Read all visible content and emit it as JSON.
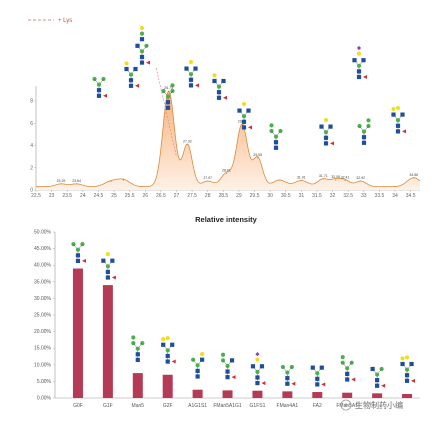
{
  "legend": {
    "label": "+ Lys",
    "line_color": "#d98a8a"
  },
  "watermark": {
    "text": "生物制药小编"
  },
  "colors": {
    "curve": "#d88a3c",
    "fill_top": "#f6b27a",
    "fill_bottom": "#fff1e6",
    "bar": "#b53a55",
    "gal": "#f2de1f",
    "man": "#4caf50",
    "glcnac": "#1f4e9a",
    "fuc": "#d32f2f",
    "sia": "#8e44ad"
  },
  "chart_data": [
    {
      "type": "area",
      "title": "",
      "xlabel": "",
      "ylabel": "",
      "x_ticks": [
        "22.5",
        "23",
        "23.5",
        "24",
        "24.5",
        "25",
        "25.5",
        "26",
        "26.5",
        "27",
        "27.5",
        "28",
        "28.5",
        "29",
        "29.5",
        "30",
        "30.5",
        "31",
        "31.5",
        "32",
        "32.5",
        "33",
        "33.5",
        "34",
        "34.5"
      ],
      "y_ticks": [
        "0",
        "2",
        "4",
        "6",
        "8"
      ],
      "xlim": [
        22.5,
        34.8
      ],
      "ylim": [
        0,
        9
      ],
      "grid": false,
      "baseline": 0.3,
      "peaks": [
        {
          "x": 23.3,
          "h": 0.25,
          "w": 0.25,
          "label": "23.29"
        },
        {
          "x": 23.8,
          "h": 0.25,
          "w": 0.25,
          "label": "23.84"
        },
        {
          "x": 24.9,
          "h": 0.45,
          "w": 0.3
        },
        {
          "x": 25.3,
          "h": 0.6,
          "w": 0.3
        },
        {
          "x": 26.75,
          "h": 8.6,
          "w": 0.26,
          "label": "26.73"
        },
        {
          "x": 27.35,
          "h": 3.8,
          "w": 0.22,
          "label": "27.32"
        },
        {
          "x": 28.0,
          "h": 0.5,
          "w": 0.25,
          "label": "27.97"
        },
        {
          "x": 28.6,
          "h": 1.2,
          "w": 0.25,
          "label": "28.61"
        },
        {
          "x": 29.1,
          "h": 5.6,
          "w": 0.25,
          "label": "29.11"
        },
        {
          "x": 29.6,
          "h": 2.6,
          "w": 0.22,
          "label": "29.65"
        },
        {
          "x": 30.3,
          "h": 0.6,
          "w": 0.3
        },
        {
          "x": 31.0,
          "h": 0.55,
          "w": 0.3,
          "label": "31.01"
        },
        {
          "x": 31.7,
          "h": 0.7,
          "w": 0.25,
          "label": "31.71"
        },
        {
          "x": 32.1,
          "h": 0.6,
          "w": 0.22,
          "label": "32.08"
        },
        {
          "x": 32.4,
          "h": 0.55,
          "w": 0.22,
          "label": "32.41"
        },
        {
          "x": 32.9,
          "h": 0.5,
          "w": 0.25,
          "label": "32.92"
        },
        {
          "x": 34.6,
          "h": 0.8,
          "w": 0.3,
          "label": "34.56"
        }
      ]
    },
    {
      "type": "bar",
      "title": "Relative intensity",
      "xlabel": "",
      "ylabel": "",
      "categories": [
        "G0F",
        "G1F",
        "Man5",
        "G2F",
        "A1G1S1",
        "FMan5A1G1",
        "G1FS1",
        "FMan4A1",
        "FA2",
        "FMan5A1",
        "",
        ""
      ],
      "values": [
        39.0,
        34.0,
        7.5,
        7.0,
        2.5,
        2.3,
        2.2,
        2.0,
        1.8,
        1.6,
        1.4,
        1.2
      ],
      "y_ticks": [
        "0.00%",
        "5.00%",
        "10.00%",
        "15.00%",
        "20.00%",
        "25.00%",
        "30.00%",
        "35.00%",
        "40.00%",
        "45.00%",
        "50.00%"
      ],
      "ylim": [
        0,
        50
      ],
      "grid": false
    }
  ]
}
